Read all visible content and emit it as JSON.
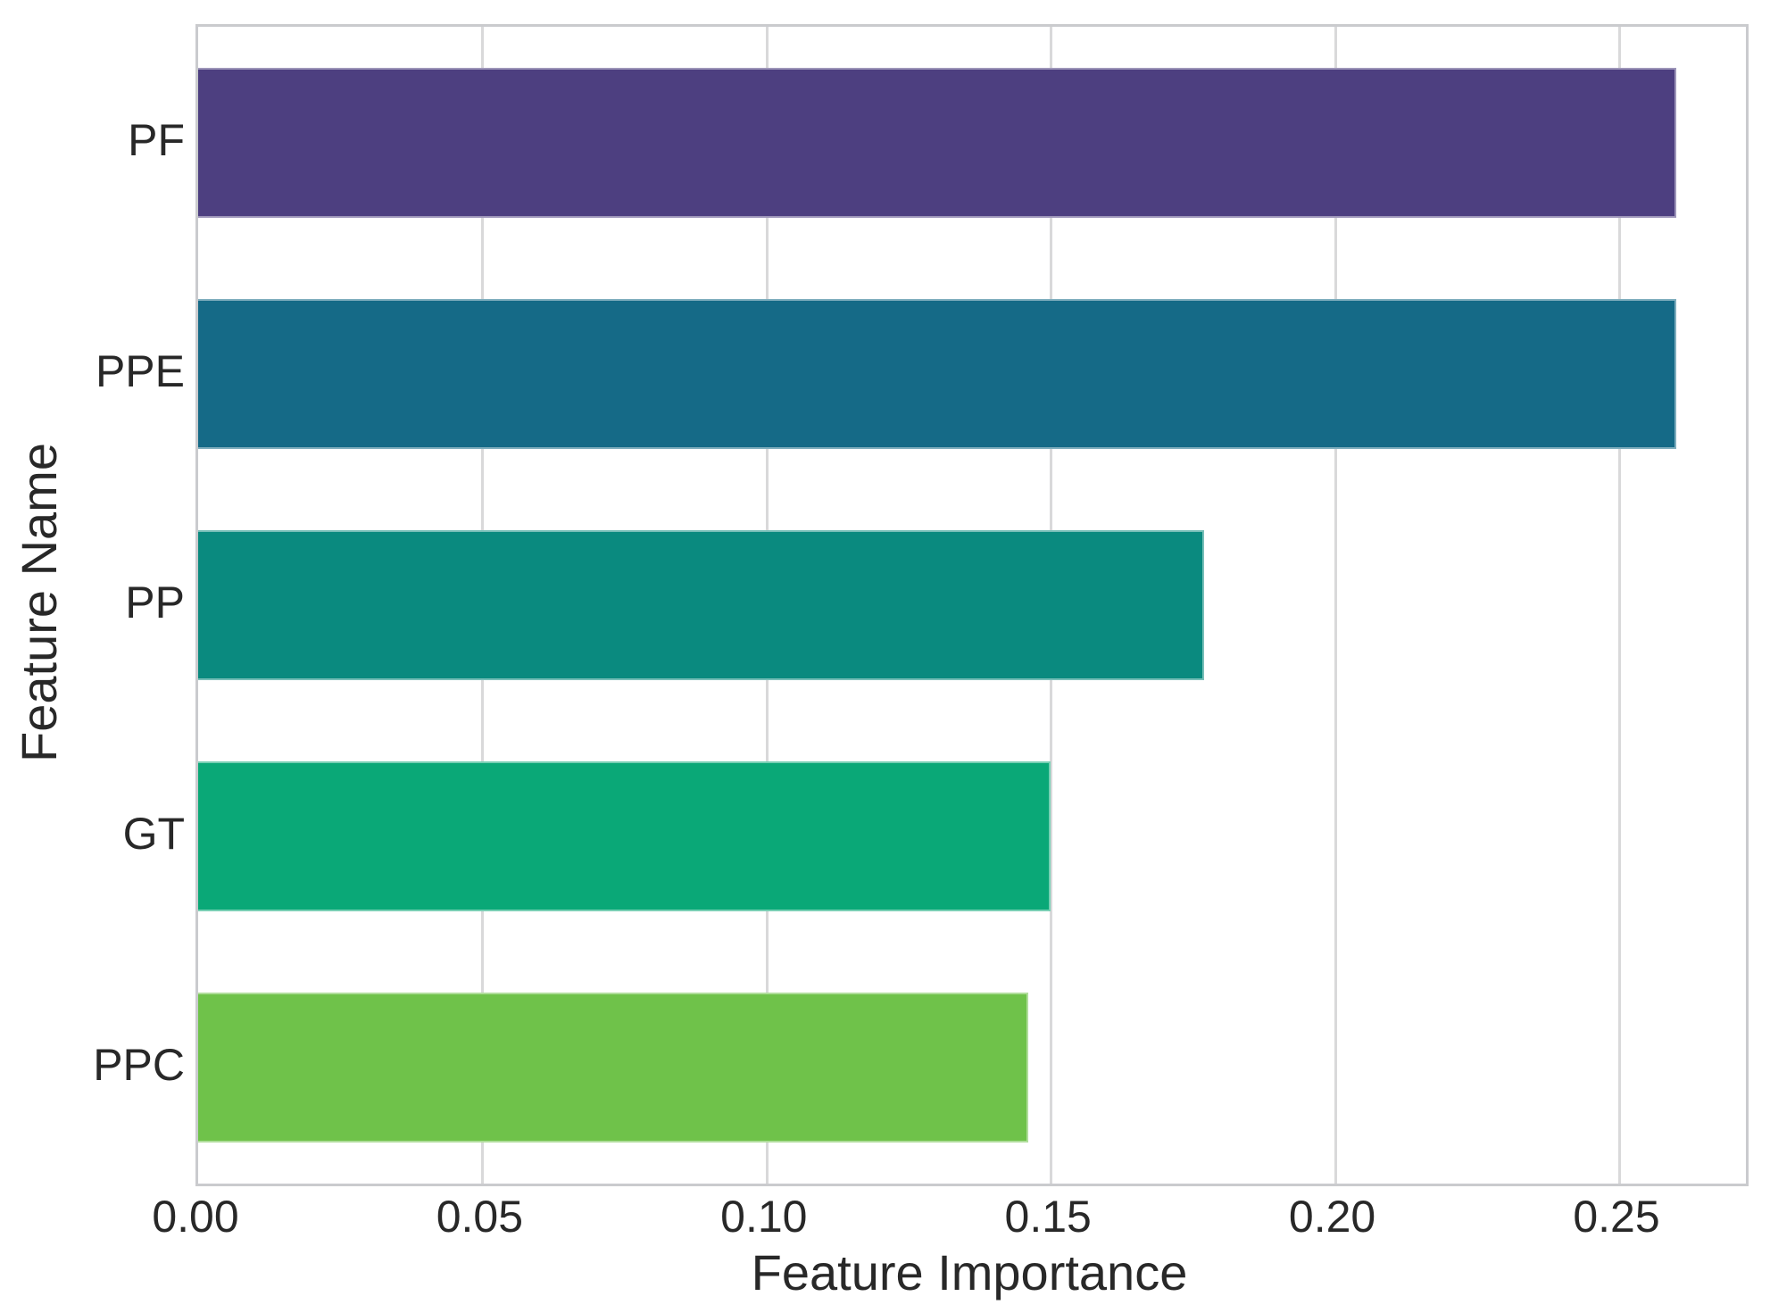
{
  "chart_data": {
    "type": "bar",
    "orientation": "horizontal",
    "title": "",
    "xlabel": "Feature Importance",
    "ylabel": "Feature Name",
    "categories": [
      "PF",
      "PPE",
      "PP",
      "GT",
      "PPC"
    ],
    "values": [
      0.26,
      0.26,
      0.177,
      0.15,
      0.146
    ],
    "bar_colors": [
      "#4d3f80",
      "#156a87",
      "#0a8a7f",
      "#0aa877",
      "#6fc24a"
    ],
    "xlim": [
      0,
      0.2723
    ],
    "xticks": [
      0,
      0.05,
      0.1,
      0.15,
      0.2,
      0.25
    ],
    "xtick_labels": [
      "0.00",
      "0.05",
      "0.10",
      "0.15",
      "0.20",
      "0.25"
    ],
    "grid": true,
    "grid_axis": "x",
    "legend": false
  },
  "style": {
    "background": "#ffffff",
    "grid_color": "#d9d9da",
    "spine_color": "#cacbce",
    "text_color": "#282828",
    "bar_edge_color": "rgba(255,255,255,0.45)"
  }
}
